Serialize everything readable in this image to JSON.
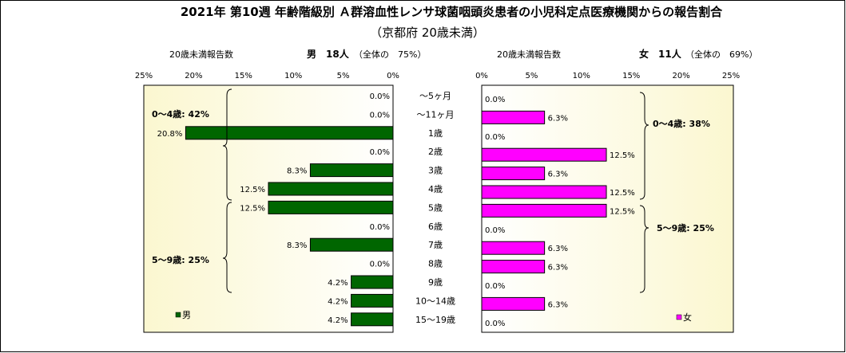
{
  "chart_data": {
    "type": "bar",
    "title": "2021年 第10週 年齢階級別 Ａ群溶血性レンサ球菌咽頭炎患者の小児科定点医療機関からの報告割合",
    "subtitle": "（京都府 20歳未満）",
    "categories": [
      "～5ヶ月",
      "～11ヶ月",
      "1歳",
      "2歳",
      "3歳",
      "4歳",
      "5歳",
      "6歳",
      "7歳",
      "8歳",
      "9歳",
      "10～14歳",
      "15～19歳"
    ],
    "xlim": [
      0,
      25
    ],
    "xticks": [
      "0%",
      "5%",
      "10%",
      "15%",
      "20%",
      "25%"
    ],
    "series": [
      {
        "name": "男",
        "header_label": "20歳未満報告数",
        "header_count": "男　18人",
        "header_share": "（全体の　75%）",
        "color": "#006600",
        "values": [
          0.0,
          0.0,
          20.8,
          0.0,
          8.3,
          12.5,
          12.5,
          0.0,
          8.3,
          0.0,
          4.2,
          4.2,
          4.2
        ],
        "value_labels": [
          "0.0%",
          "0.0%",
          "20.8%",
          "0.0%",
          "8.3%",
          "12.5%",
          "12.5%",
          "0.0%",
          "8.3%",
          "0.0%",
          "4.2%",
          "4.2%",
          "4.2%"
        ],
        "group_labels": [
          "0～4歳: 42%",
          "5～9歳: 25%"
        ]
      },
      {
        "name": "女",
        "header_label": "20歳未満報告数",
        "header_count": "女　11人",
        "header_share": "（全体の　69%）",
        "color": "#ff00ff",
        "values": [
          0.0,
          6.3,
          0.0,
          12.5,
          6.3,
          12.5,
          12.5,
          0.0,
          6.3,
          6.3,
          0.0,
          6.3,
          0.0
        ],
        "value_labels": [
          "0.0%",
          "6.3%",
          "0.0%",
          "12.5%",
          "6.3%",
          "12.5%",
          "12.5%",
          "0.0%",
          "6.3%",
          "6.3%",
          "0.0%",
          "6.3%",
          "0.0%"
        ],
        "group_labels": [
          "0～4歳: 38%",
          "5～9歳: 25%"
        ]
      }
    ],
    "grid": false,
    "legend": "bottom-inside"
  }
}
